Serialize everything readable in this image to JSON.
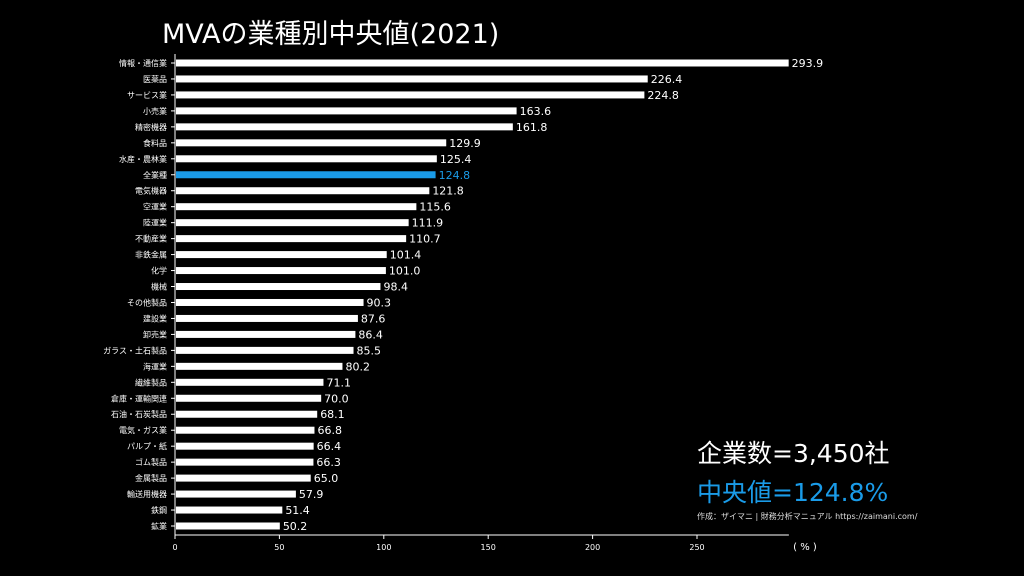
{
  "chart_data": {
    "type": "bar",
    "orientation": "horizontal",
    "title": "MVAの業種別中央値(2021)",
    "xlabel": "(%)",
    "xlim": [
      0,
      294
    ],
    "xticks": [
      0,
      50,
      100,
      150,
      200,
      250
    ],
    "categories": [
      "情報・通信業",
      "医薬品",
      "サービス業",
      "小売業",
      "精密機器",
      "食料品",
      "水産・農林業",
      "全業種",
      "電気機器",
      "空運業",
      "陸運業",
      "不動産業",
      "非鉄金属",
      "化学",
      "機械",
      "その他製品",
      "建設業",
      "卸売業",
      "ガラス・土石製品",
      "海運業",
      "繊維製品",
      "倉庫・運輸関連",
      "石油・石炭製品",
      "電気・ガス業",
      "パルプ・紙",
      "ゴム製品",
      "金属製品",
      "輸送用機器",
      "鉄鋼",
      "鉱業"
    ],
    "values": [
      293.9,
      226.4,
      224.8,
      163.6,
      161.8,
      129.9,
      125.4,
      124.8,
      121.8,
      115.6,
      111.9,
      110.7,
      101.4,
      101.0,
      98.4,
      90.3,
      87.6,
      86.4,
      85.5,
      80.2,
      71.1,
      70.0,
      68.1,
      66.8,
      66.4,
      66.3,
      65.0,
      57.9,
      51.4,
      50.2
    ],
    "highlight": "全業種",
    "colors": {
      "bar": "#ffffff",
      "highlight": "#1a9be8",
      "background": "#000000"
    }
  },
  "annotations": {
    "company_count": "企業数=3,450社",
    "median": "中央値=124.8%",
    "credit": "作成：ザイマニ | 財務分析マニュアル https://zaimani.com/"
  }
}
